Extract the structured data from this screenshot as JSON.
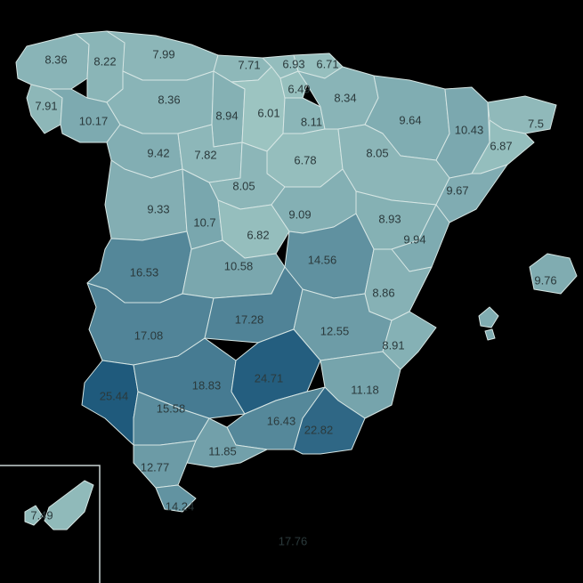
{
  "map": {
    "color_scale": {
      "low": "#9cc4c1",
      "high": "#1f5a7c",
      "min": 6.0,
      "max": 25.5
    },
    "regions": [
      {
        "id": "a-coruna",
        "value": 8.36,
        "label": "8.36"
      },
      {
        "id": "lugo",
        "value": 8.22,
        "label": "8.22"
      },
      {
        "id": "asturias",
        "value": 7.99,
        "label": "7.99"
      },
      {
        "id": "cantabria",
        "value": 7.71,
        "label": "7.71"
      },
      {
        "id": "bizkaia",
        "value": 6.93,
        "label": "6.93"
      },
      {
        "id": "gipuzkoa",
        "value": 6.71,
        "label": "6.71"
      },
      {
        "id": "pontevedra",
        "value": 7.91,
        "label": "7.91"
      },
      {
        "id": "ourense",
        "value": 10.17,
        "label": "10.17"
      },
      {
        "id": "leon",
        "value": 8.36,
        "label": "8.36"
      },
      {
        "id": "palencia",
        "value": 8.94,
        "label": "8.94"
      },
      {
        "id": "burgos",
        "value": 6.01,
        "label": "6.01"
      },
      {
        "id": "alava",
        "value": 6.49,
        "label": "6.49"
      },
      {
        "id": "la-rioja",
        "value": 8.11,
        "label": "8.11"
      },
      {
        "id": "navarra",
        "value": 8.34,
        "label": "8.34"
      },
      {
        "id": "huesca",
        "value": 9.64,
        "label": "9.64"
      },
      {
        "id": "lleida",
        "value": 10.43,
        "label": "10.43"
      },
      {
        "id": "girona",
        "value": 7.5,
        "label": "7.5"
      },
      {
        "id": "barcelona",
        "value": 6.87,
        "label": "6.87"
      },
      {
        "id": "zamora",
        "value": 9.42,
        "label": "9.42"
      },
      {
        "id": "valladolid",
        "value": 7.82,
        "label": "7.82"
      },
      {
        "id": "soria",
        "value": 6.78,
        "label": "6.78"
      },
      {
        "id": "zaragoza",
        "value": 8.05,
        "label": "8.05"
      },
      {
        "id": "segovia",
        "value": 8.05,
        "label": "8.05"
      },
      {
        "id": "tarragona",
        "value": 9.67,
        "label": "9.67"
      },
      {
        "id": "salamanca",
        "value": 9.33,
        "label": "9.33"
      },
      {
        "id": "avila",
        "value": 10.7,
        "label": "10.7"
      },
      {
        "id": "madrid",
        "value": 6.82,
        "label": "6.82"
      },
      {
        "id": "guadalajara",
        "value": 9.09,
        "label": "9.09"
      },
      {
        "id": "teruel",
        "value": 8.93,
        "label": "8.93"
      },
      {
        "id": "castellon",
        "value": 9.94,
        "label": "9.94"
      },
      {
        "id": "caceres",
        "value": 16.53,
        "label": "16.53"
      },
      {
        "id": "toledo",
        "value": 10.58,
        "label": "10.58"
      },
      {
        "id": "cuenca",
        "value": 14.56,
        "label": "14.56"
      },
      {
        "id": "baleares",
        "value": 9.76,
        "label": "9.76"
      },
      {
        "id": "valencia",
        "value": 8.86,
        "label": "8.86"
      },
      {
        "id": "badajoz",
        "value": 17.08,
        "label": "17.08"
      },
      {
        "id": "ciudad-real",
        "value": 17.28,
        "label": "17.28"
      },
      {
        "id": "albacete",
        "value": 12.55,
        "label": "12.55"
      },
      {
        "id": "alicante",
        "value": 8.91,
        "label": "8.91"
      },
      {
        "id": "huelva",
        "value": 25.44,
        "label": "25.44"
      },
      {
        "id": "cordoba",
        "value": 18.83,
        "label": "18.83"
      },
      {
        "id": "jaen",
        "value": 24.71,
        "label": "24.71"
      },
      {
        "id": "murcia",
        "value": 11.18,
        "label": "11.18"
      },
      {
        "id": "sevilla",
        "value": 15.58,
        "label": "15.58"
      },
      {
        "id": "granada",
        "value": 16.43,
        "label": "16.43"
      },
      {
        "id": "almeria",
        "value": 22.82,
        "label": "22.82"
      },
      {
        "id": "malaga",
        "value": 11.85,
        "label": "11.85"
      },
      {
        "id": "cadiz",
        "value": 12.77,
        "label": "12.77"
      },
      {
        "id": "ceuta",
        "value": 14.24,
        "label": "14.24"
      },
      {
        "id": "canarias",
        "value": 7.49,
        "label": "7.49"
      },
      {
        "id": "melilla",
        "value": 17.76,
        "label": "17.76"
      }
    ]
  }
}
